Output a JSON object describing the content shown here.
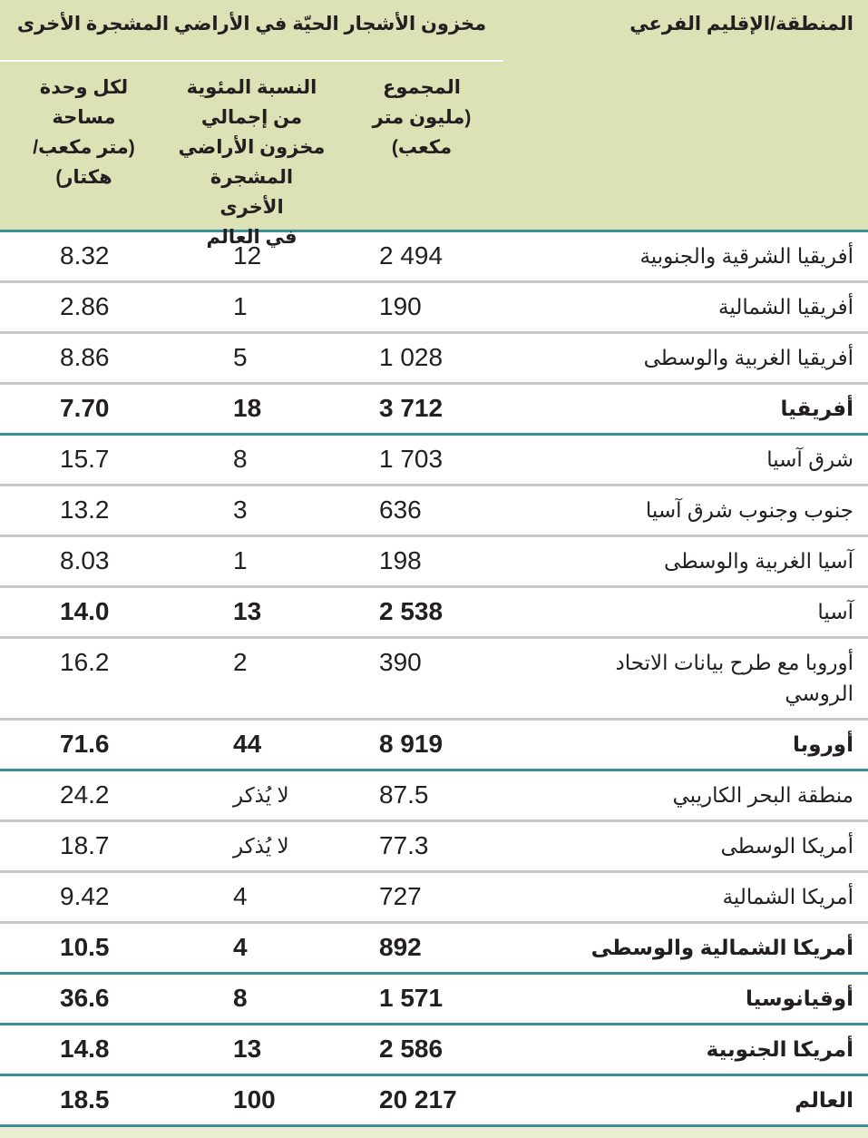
{
  "header": {
    "region": "المنطقة/الإقليم الفرعي",
    "group": "مخزون الأشجار الحيّة في الأراضي المشجرة الأخرى",
    "col_total": [
      "المجموع",
      "(مليون متر",
      "مكعب)"
    ],
    "col_percent": [
      "النسبة المئوية",
      "من إجمالي",
      "مخزون الأراضي",
      "المشجرة الأخرى",
      "في العالم"
    ],
    "col_per_area": [
      "لكل وحدة",
      "مساحة",
      "(متر مكعب/",
      "هكتار)"
    ]
  },
  "colors": {
    "header_bg": "#dde2b6",
    "accent_rule": "#3a8e98",
    "row_rule": "#c9c9c9"
  },
  "rows": [
    {
      "region": "أفريقيا الشرقية والجنوبية",
      "total": "2 494",
      "percent": "12",
      "per_area": "8.32",
      "bold": false,
      "rule": "gray"
    },
    {
      "region": "أفريقيا الشمالية",
      "total": "190",
      "percent": "1",
      "per_area": "2.86",
      "bold": false,
      "rule": "gray"
    },
    {
      "region": "أفريقيا الغربية والوسطى",
      "total": "1 028",
      "percent": "5",
      "per_area": "8.86",
      "bold": false,
      "rule": "gray"
    },
    {
      "region": "أفريقيا",
      "total": "3 712",
      "percent": "18",
      "per_area": "7.70",
      "bold": true,
      "rule": "teal"
    },
    {
      "region": "شرق آسيا",
      "total": "1 703",
      "percent": "8",
      "per_area": "15.7",
      "bold": false,
      "rule": "gray"
    },
    {
      "region": "جنوب وجنوب شرق آسيا",
      "total": "636",
      "percent": "3",
      "per_area": "13.2",
      "bold": false,
      "rule": "gray"
    },
    {
      "region": "آسيا الغربية والوسطى",
      "total": "198",
      "percent": "1",
      "per_area": "8.03",
      "bold": false,
      "rule": "gray"
    },
    {
      "region": "آسيا",
      "total": "2 538",
      "percent": "13",
      "per_area": "14.0",
      "bold": true,
      "rule": "gray"
    },
    {
      "region": "أوروبا مع طرح بيانات الاتحاد الروسي",
      "total": "390",
      "percent": "2",
      "per_area": "16.2",
      "bold": false,
      "rule": "gray"
    },
    {
      "region": "أوروبا",
      "total": "8 919",
      "percent": "44",
      "per_area": "71.6",
      "bold": true,
      "rule": "teal"
    },
    {
      "region": "منطقة البحر الكاريبي",
      "total": "87.5",
      "percent": "لا يُذكر",
      "per_area": "24.2",
      "bold": false,
      "rule": "gray"
    },
    {
      "region": "أمريكا الوسطى",
      "total": "77.3",
      "percent": "لا يُذكر",
      "per_area": "18.7",
      "bold": false,
      "rule": "gray"
    },
    {
      "region": "أمريكا الشمالية",
      "total": "727",
      "percent": "4",
      "per_area": "9.42",
      "bold": false,
      "rule": "gray"
    },
    {
      "region": "أمريكا الشمالية والوسطى",
      "total": "892",
      "percent": "4",
      "per_area": "10.5",
      "bold": true,
      "rule": "teal"
    },
    {
      "region": "أوقيانوسيا",
      "total": "1 571",
      "percent": "8",
      "per_area": "36.6",
      "bold": true,
      "rule": "teal"
    },
    {
      "region": "أمريكا الجنوبية",
      "total": "2 586",
      "percent": "13",
      "per_area": "14.8",
      "bold": true,
      "rule": "teal"
    },
    {
      "region": "العالم",
      "total": "20 217",
      "percent": "100",
      "per_area": "18.5",
      "bold": true,
      "rule": "teal"
    }
  ]
}
